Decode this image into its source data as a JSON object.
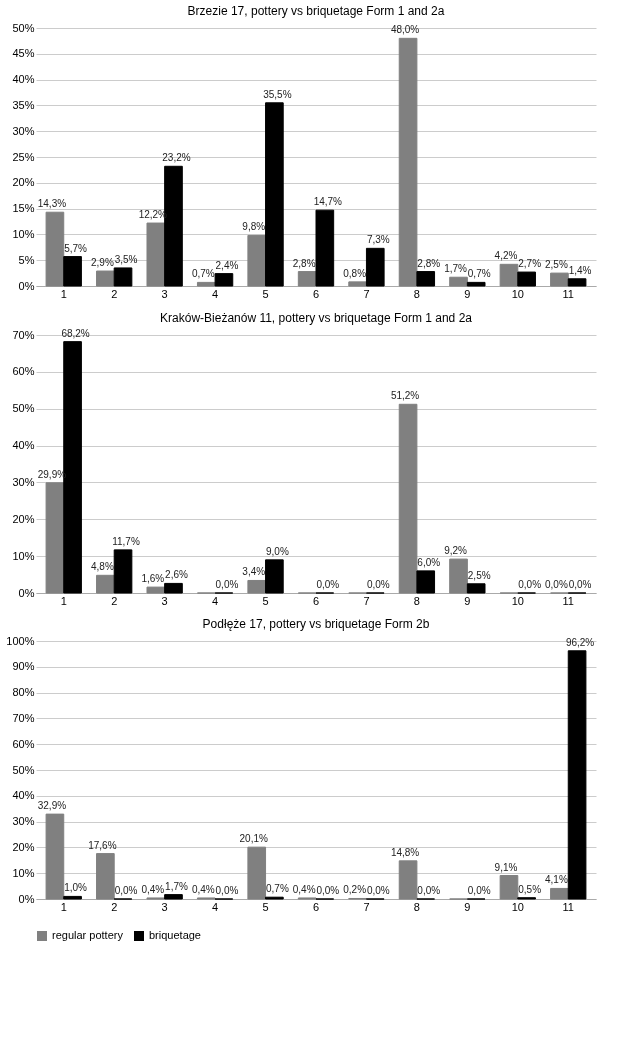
{
  "chart_data": [
    {
      "type": "bar",
      "title": "Brzezie 17, pottery vs briquetage Form 1 and 2a",
      "categories": [
        "1",
        "2",
        "3",
        "4",
        "5",
        "6",
        "7",
        "8",
        "9",
        "10",
        "11"
      ],
      "series": [
        {
          "color": "#808080",
          "values": [
            14.3,
            2.9,
            12.2,
            0.7,
            9.8,
            2.8,
            0.8,
            48.0,
            1.7,
            4.2,
            2.5
          ],
          "value_labels": [
            "14,3%",
            "2,9%",
            "12,2%",
            "0,7%",
            "9,8%",
            "2,8%",
            "0,8%",
            "48,0%",
            "1,7%",
            "4,2%",
            "2,5%"
          ]
        },
        {
          "color": "#000000",
          "values": [
            5.7,
            3.5,
            23.2,
            2.4,
            35.5,
            14.7,
            7.3,
            2.8,
            0.7,
            2.7,
            1.4
          ],
          "value_labels": [
            "5,7%",
            "3,5%",
            "23,2%",
            "2,4%",
            "35,5%",
            "14,7%",
            "7,3%",
            "2,8%",
            "0,7%",
            "2,7%",
            "1,4%"
          ]
        }
      ],
      "ylim": [
        0,
        50
      ],
      "yticks": [
        {
          "value": 0,
          "label": "0%"
        },
        {
          "value": 5,
          "label": "5%"
        },
        {
          "value": 10,
          "label": "10%"
        },
        {
          "value": 15,
          "label": "15%"
        },
        {
          "value": 20,
          "label": "20%"
        },
        {
          "value": 25,
          "label": "25%"
        },
        {
          "value": 30,
          "label": "30%"
        },
        {
          "value": 35,
          "label": "35%"
        },
        {
          "value": 40,
          "label": "40%"
        },
        {
          "value": 45,
          "label": "45%"
        },
        {
          "value": 50,
          "label": "50%"
        }
      ],
      "grid": "y",
      "legend": false
    },
    {
      "type": "bar",
      "title": "Kraków-Bieżanów 11, pottery vs briquetage Form 1 and 2a",
      "categories": [
        "1",
        "2",
        "3",
        "4",
        "5",
        "6",
        "7",
        "8",
        "9",
        "10",
        "11"
      ],
      "series": [
        {
          "color": "#808080",
          "values": [
            29.9,
            4.8,
            1.6,
            0.0,
            3.4,
            0.0,
            0.0,
            51.2,
            9.2,
            0.0,
            0.0
          ],
          "value_labels": [
            "29,9%",
            "4,8%",
            "1,6%",
            null,
            "3,4%",
            null,
            null,
            "51,2%",
            "9,2%",
            null,
            "0,0%"
          ]
        },
        {
          "color": "#000000",
          "values": [
            68.2,
            11.7,
            2.6,
            0.0,
            9.0,
            0.0,
            0.0,
            6.0,
            2.5,
            0.0,
            0.0
          ],
          "value_labels": [
            "68,2%",
            "11,7%",
            "2,6%",
            "0,0%",
            "9,0%",
            "0,0%",
            "0,0%",
            "6,0%",
            "2,5%",
            "0,0%",
            "0,0%"
          ]
        }
      ],
      "ylim": [
        0,
        70
      ],
      "yticks": [
        {
          "value": 0,
          "label": "0%"
        },
        {
          "value": 10,
          "label": "10%"
        },
        {
          "value": 20,
          "label": "20%"
        },
        {
          "value": 30,
          "label": "30%"
        },
        {
          "value": 40,
          "label": "40%"
        },
        {
          "value": 50,
          "label": "50%"
        },
        {
          "value": 60,
          "label": "60%"
        },
        {
          "value": 70,
          "label": "70%"
        }
      ],
      "grid": "y",
      "legend": false
    },
    {
      "type": "bar",
      "title": "Podłęże 17, pottery vs briquetage Form 2b",
      "categories": [
        "1",
        "2",
        "3",
        "4",
        "5",
        "6",
        "7",
        "8",
        "9",
        "10",
        "11"
      ],
      "series": [
        {
          "name": "regular pottery",
          "color": "#808080",
          "values": [
            32.9,
            17.6,
            0.4,
            0.4,
            20.1,
            0.4,
            0.2,
            14.8,
            0.0,
            9.1,
            4.1
          ],
          "value_labels": [
            "32,9%",
            "17,6%",
            "0,4%",
            "0,4%",
            "20,1%",
            "0,4%",
            "0,2%",
            "14,8%",
            null,
            "9,1%",
            "4,1%"
          ]
        },
        {
          "name": "briquetage",
          "color": "#000000",
          "values": [
            1.0,
            0.0,
            1.7,
            0.0,
            0.7,
            0.0,
            0.0,
            0.0,
            0.0,
            0.5,
            96.2
          ],
          "value_labels": [
            "1,0%",
            "0,0%",
            "1,7%",
            "0,0%",
            "0,7%",
            "0,0%",
            "0,0%",
            "0,0%",
            "0,0%",
            "0,5%",
            "96,2%"
          ]
        }
      ],
      "ylim": [
        0,
        100
      ],
      "yticks": [
        {
          "value": 0,
          "label": "0%"
        },
        {
          "value": 10,
          "label": "10%"
        },
        {
          "value": 20,
          "label": "20%"
        },
        {
          "value": 30,
          "label": "30%"
        },
        {
          "value": 40,
          "label": "40%"
        },
        {
          "value": 50,
          "label": "50%"
        },
        {
          "value": 60,
          "label": "60%"
        },
        {
          "value": 70,
          "label": "70%"
        },
        {
          "value": 80,
          "label": "80%"
        },
        {
          "value": 90,
          "label": "90%"
        },
        {
          "value": 100,
          "label": "100%"
        }
      ],
      "grid": "y",
      "legend": "bottom"
    }
  ]
}
